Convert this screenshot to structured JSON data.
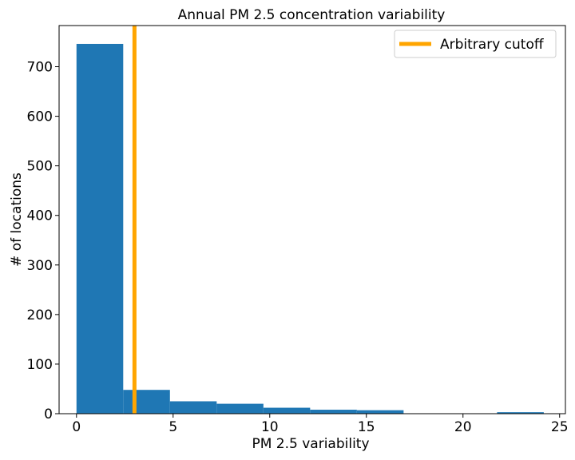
{
  "chart_data": {
    "type": "bar",
    "title": "Annual PM 2.5 concentration variability",
    "xlabel": "PM 2.5 variability",
    "ylabel": "# of locations",
    "xlim": [
      -0.9,
      25.3
    ],
    "ylim": [
      0,
      783
    ],
    "xticks": [
      0,
      5,
      10,
      15,
      20,
      25
    ],
    "yticks": [
      0,
      100,
      200,
      300,
      400,
      500,
      600,
      700
    ],
    "bins": [
      {
        "start": 0.0,
        "end": 2.418,
        "count": 746
      },
      {
        "start": 2.418,
        "end": 4.836,
        "count": 48
      },
      {
        "start": 4.836,
        "end": 7.254,
        "count": 25
      },
      {
        "start": 7.254,
        "end": 9.672,
        "count": 20
      },
      {
        "start": 9.672,
        "end": 12.09,
        "count": 12
      },
      {
        "start": 12.09,
        "end": 14.508,
        "count": 8
      },
      {
        "start": 14.508,
        "end": 16.926,
        "count": 7
      },
      {
        "start": 16.926,
        "end": 19.344,
        "count": 0
      },
      {
        "start": 19.344,
        "end": 21.762,
        "count": 0
      },
      {
        "start": 21.762,
        "end": 24.18,
        "count": 3
      }
    ],
    "bar_color": "#1f77b4",
    "cutoff": {
      "x": 3.0,
      "label": "Arbitrary cutoff",
      "color": "#ffa500"
    },
    "legend": {
      "position": "top-right"
    },
    "grid": false
  }
}
